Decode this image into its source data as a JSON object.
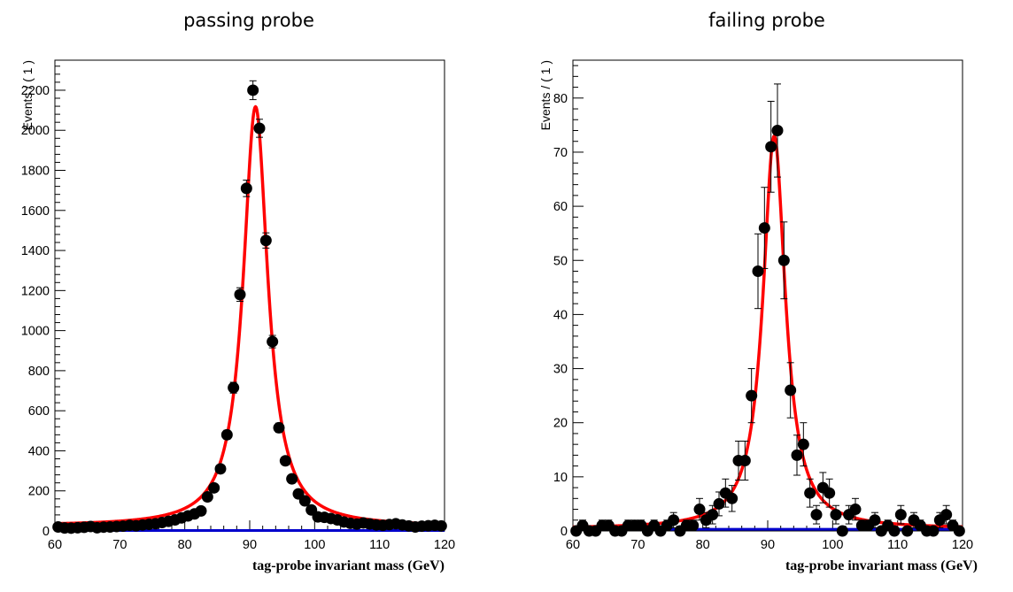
{
  "chart_data": [
    {
      "type": "scatter",
      "title": "passing probe",
      "xlabel": "tag-probe invariant mass (GeV)",
      "ylabel": "Events / ( 1 )",
      "xlim": [
        60,
        120
      ],
      "ylim": [
        0,
        2350
      ],
      "xticks": [
        60,
        70,
        80,
        90,
        100,
        110,
        120
      ],
      "yticks": [
        0,
        200,
        400,
        600,
        800,
        1000,
        1200,
        1400,
        1600,
        1800,
        2000,
        2200
      ],
      "grid": false,
      "series": [
        {
          "kind": "points",
          "color": "#000000",
          "x": [
            60.5,
            61.5,
            62.5,
            63.5,
            64.5,
            65.5,
            66.5,
            67.5,
            68.5,
            69.5,
            70.5,
            71.5,
            72.5,
            73.5,
            74.5,
            75.5,
            76.5,
            77.5,
            78.5,
            79.5,
            80.5,
            81.5,
            82.5,
            83.5,
            84.5,
            85.5,
            86.5,
            87.5,
            88.5,
            89.5,
            90.5,
            91.5,
            92.5,
            93.5,
            94.5,
            95.5,
            96.5,
            97.5,
            98.5,
            99.5,
            100.5,
            101.5,
            102.5,
            103.5,
            104.5,
            105.5,
            106.5,
            107.5,
            108.5,
            109.5,
            110.5,
            111.5,
            112.5,
            113.5,
            114.5,
            115.5,
            116.5,
            117.5,
            118.5,
            119.5
          ],
          "y": [
            20,
            15,
            14,
            16,
            18,
            22,
            16,
            19,
            20,
            22,
            24,
            28,
            26,
            30,
            33,
            36,
            42,
            48,
            55,
            65,
            75,
            85,
            100,
            170,
            215,
            310,
            480,
            715,
            1180,
            1710,
            2200,
            2010,
            1450,
            945,
            515,
            350,
            260,
            185,
            150,
            105,
            70,
            68,
            62,
            55,
            45,
            38,
            34,
            40,
            35,
            30,
            28,
            32,
            36,
            30,
            25,
            20,
            24,
            26,
            28,
            25
          ],
          "yerr": [
            5,
            4,
            4,
            4,
            4,
            5,
            4,
            4,
            5,
            5,
            5,
            5,
            5,
            5,
            6,
            6,
            6,
            7,
            7,
            8,
            9,
            9,
            10,
            13,
            15,
            18,
            22,
            27,
            34,
            41,
            47,
            45,
            38,
            31,
            23,
            19,
            16,
            14,
            12,
            10,
            8,
            8,
            8,
            7,
            7,
            6,
            6,
            6,
            6,
            5,
            5,
            6,
            6,
            5,
            5,
            4,
            5,
            5,
            5,
            5
          ]
        },
        {
          "kind": "fit",
          "color": "#ff0000",
          "model": "breit_wigner_plus_exponential",
          "peak_mass": 90.9,
          "width": 4.6,
          "peak_height": 2120,
          "background_at_60": 25,
          "background_slope": -0.003
        },
        {
          "kind": "background",
          "color": "#0000cc",
          "value": 2
        }
      ]
    },
    {
      "type": "scatter",
      "title": "failing probe",
      "xlabel": "tag-probe invariant mass (GeV)",
      "ylabel": "Events / ( 1 )",
      "xlim": [
        60,
        120
      ],
      "ylim": [
        0,
        87
      ],
      "xticks": [
        60,
        70,
        80,
        90,
        100,
        110,
        120
      ],
      "yticks": [
        0,
        10,
        20,
        30,
        40,
        50,
        60,
        70,
        80
      ],
      "grid": false,
      "series": [
        {
          "kind": "points",
          "color": "#000000",
          "x": [
            60.5,
            61.5,
            62.5,
            63.5,
            64.5,
            65.5,
            66.5,
            67.5,
            68.5,
            69.5,
            70.5,
            71.5,
            72.5,
            73.5,
            74.5,
            75.5,
            76.5,
            77.5,
            78.5,
            79.5,
            80.5,
            81.5,
            82.5,
            83.5,
            84.5,
            85.5,
            86.5,
            87.5,
            88.5,
            89.5,
            90.5,
            91.5,
            92.5,
            93.5,
            94.5,
            95.5,
            96.5,
            97.5,
            98.5,
            99.5,
            100.5,
            101.5,
            102.5,
            103.5,
            104.5,
            105.5,
            106.5,
            107.5,
            108.5,
            109.5,
            110.5,
            111.5,
            112.5,
            113.5,
            114.5,
            115.5,
            116.5,
            117.5,
            118.5,
            119.5
          ],
          "y": [
            0,
            1,
            0,
            0,
            1,
            1,
            0,
            0,
            1,
            1,
            1,
            0,
            1,
            0,
            1,
            2,
            0,
            1,
            1,
            4,
            2,
            3,
            5,
            7,
            6,
            13,
            13,
            25,
            48,
            56,
            71,
            74,
            50,
            26,
            14,
            16,
            7,
            3,
            8,
            7,
            3,
            0,
            3,
            4,
            1,
            1,
            2,
            0,
            1,
            0,
            3,
            0,
            2,
            1,
            0,
            0,
            2,
            3,
            1,
            0
          ],
          "yerr": [
            0,
            1,
            0,
            0,
            1,
            1,
            0,
            0,
            1,
            1,
            1,
            0,
            1,
            0,
            1,
            1.4,
            0,
            1,
            1,
            2,
            1.4,
            1.7,
            2.2,
            2.6,
            2.4,
            3.6,
            3.6,
            5,
            6.9,
            7.5,
            8.4,
            8.6,
            7.1,
            5.1,
            3.7,
            4,
            2.6,
            1.7,
            2.8,
            2.6,
            1.7,
            0,
            1.7,
            2,
            1,
            1,
            1.4,
            0,
            1,
            0,
            1.7,
            0,
            1.4,
            1,
            0,
            0,
            1.4,
            1.7,
            1,
            0
          ]
        },
        {
          "kind": "fit",
          "color": "#ff0000",
          "model": "breit_wigner_plus_exponential",
          "peak_mass": 91.0,
          "width": 4.2,
          "peak_height": 73,
          "background_at_60": 0.4,
          "background_slope": 0
        },
        {
          "kind": "background",
          "color": "#0000cc",
          "value": 0.3
        }
      ]
    }
  ]
}
